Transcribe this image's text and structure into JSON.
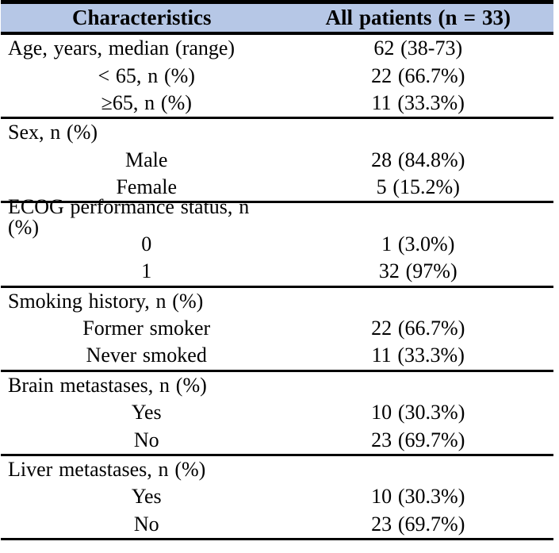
{
  "table": {
    "header": {
      "col1": "Characteristics",
      "col2": "All patients (n = 33)"
    },
    "header_bg": "#b6c7e6",
    "rule_color": "#000000",
    "sections": [
      {
        "rows": [
          {
            "label": "Age, years, median (range)",
            "value": "62 (38-73)",
            "indent": false
          },
          {
            "label": "< 65, n (%)",
            "value": "22 (66.7%)",
            "indent": true
          },
          {
            "label": "≥65, n (%)",
            "value": "11 (33.3%)",
            "indent": true
          }
        ]
      },
      {
        "rows": [
          {
            "label": "Sex, n (%)",
            "value": "",
            "indent": false
          },
          {
            "label": "Male",
            "value": "28 (84.8%)",
            "indent": true
          },
          {
            "label": "Female",
            "value": "5 (15.2%)",
            "indent": true
          }
        ]
      },
      {
        "rows": [
          {
            "label": "ECOG performance status, n (%)",
            "value": "",
            "indent": false
          },
          {
            "label": "0",
            "value": "1 (3.0%)",
            "indent": true
          },
          {
            "label": "1",
            "value": "32 (97%)",
            "indent": true
          }
        ]
      },
      {
        "rows": [
          {
            "label": "Smoking history, n (%)",
            "value": "",
            "indent": false
          },
          {
            "label": "Former smoker",
            "value": "22 (66.7%)",
            "indent": true
          },
          {
            "label": "Never smoked",
            "value": "11 (33.3%)",
            "indent": true
          }
        ]
      },
      {
        "rows": [
          {
            "label": "Brain metastases, n (%)",
            "value": "",
            "indent": false
          },
          {
            "label": "Yes",
            "value": "10 (30.3%)",
            "indent": true
          },
          {
            "label": "No",
            "value": "23 (69.7%)",
            "indent": true
          }
        ]
      },
      {
        "rows": [
          {
            "label": "Liver metastases, n (%)",
            "value": "",
            "indent": false
          },
          {
            "label": "Yes",
            "value": "10 (30.3%)",
            "indent": true
          },
          {
            "label": "No",
            "value": "23 (69.7%)",
            "indent": true
          }
        ]
      }
    ]
  }
}
